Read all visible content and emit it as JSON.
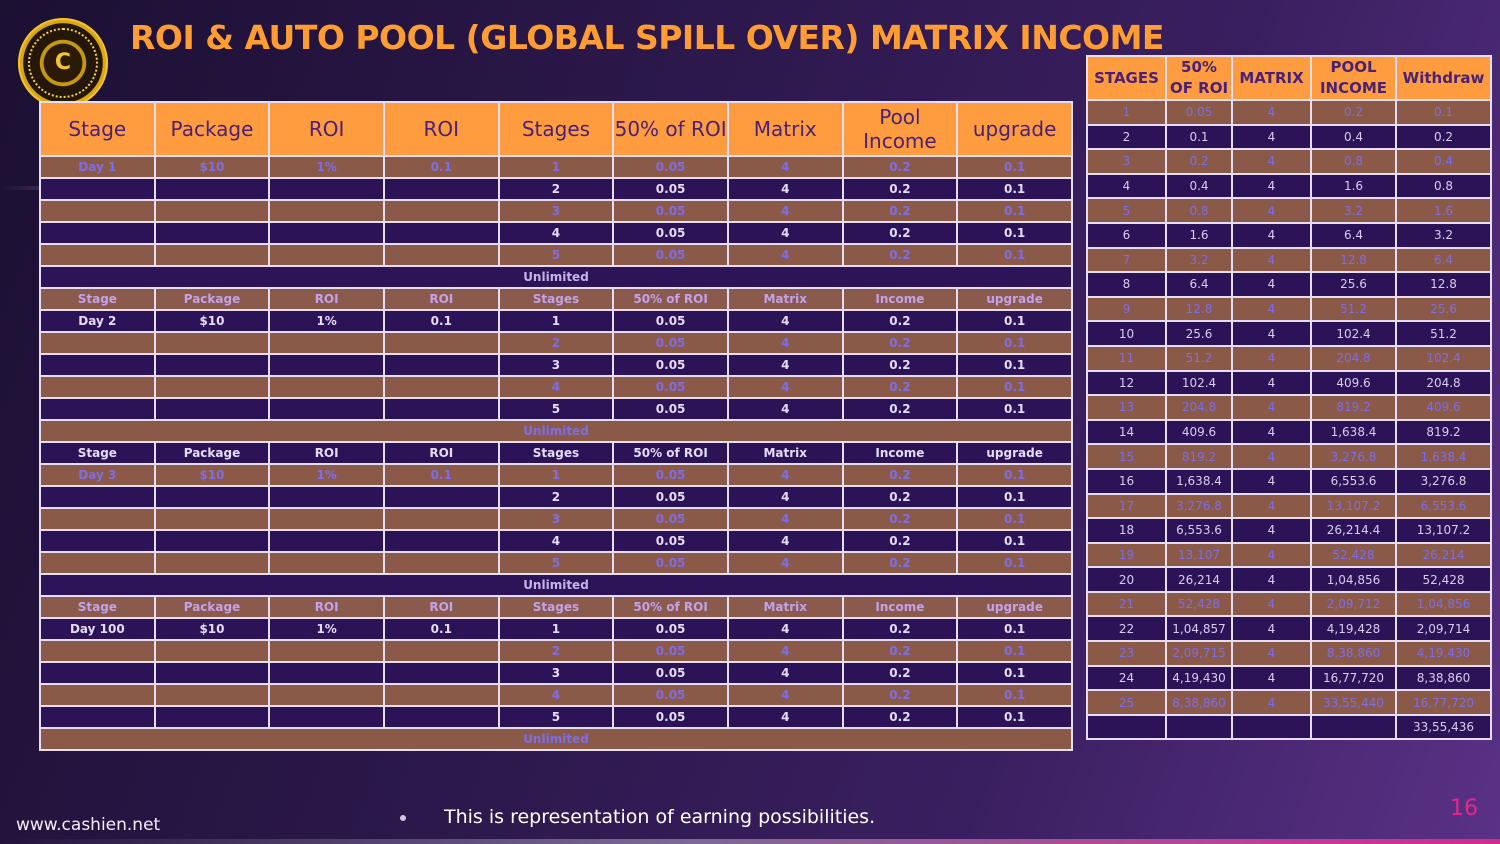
{
  "title": "ROI & AUTO POOL (GLOBAL SPILL OVER) MATRIX INCOME",
  "logo": {
    "monogram": "C",
    "ring_text": "CASHIEN DIGITAL CRYPTOCURRENCY"
  },
  "main_table": {
    "headers": [
      "Stage",
      "Package",
      "ROI",
      "ROI",
      "Stages",
      "50% of ROI",
      "Matrix",
      "Pool Income",
      "upgrade"
    ],
    "sub_headers": [
      "Stage",
      "Package",
      "ROI",
      "ROI",
      "Stages",
      "50% of ROI",
      "Matrix",
      "Income",
      "upgrade"
    ],
    "unlimited_label": "Unlimited",
    "sections": [
      {
        "day": "Day 1",
        "package": "$10",
        "roi_pct": "1%",
        "roi": "0.1",
        "rows": [
          [
            "1",
            "0.05",
            "4",
            "0.2",
            "0.1"
          ],
          [
            "2",
            "0.05",
            "4",
            "0.2",
            "0.1"
          ],
          [
            "3",
            "0.05",
            "4",
            "0.2",
            "0.1"
          ],
          [
            "4",
            "0.05",
            "4",
            "0.2",
            "0.1"
          ],
          [
            "5",
            "0.05",
            "4",
            "0.2",
            "0.1"
          ]
        ]
      },
      {
        "day": "Day 2",
        "package": "$10",
        "roi_pct": "1%",
        "roi": "0.1",
        "rows": [
          [
            "1",
            "0.05",
            "4",
            "0.2",
            "0.1"
          ],
          [
            "2",
            "0.05",
            "4",
            "0.2",
            "0.1"
          ],
          [
            "3",
            "0.05",
            "4",
            "0.2",
            "0.1"
          ],
          [
            "4",
            "0.05",
            "4",
            "0.2",
            "0.1"
          ],
          [
            "5",
            "0.05",
            "4",
            "0.2",
            "0.1"
          ]
        ]
      },
      {
        "day": "Day 3",
        "package": "$10",
        "roi_pct": "1%",
        "roi": "0.1",
        "rows": [
          [
            "1",
            "0.05",
            "4",
            "0.2",
            "0.1"
          ],
          [
            "2",
            "0.05",
            "4",
            "0.2",
            "0.1"
          ],
          [
            "3",
            "0.05",
            "4",
            "0.2",
            "0.1"
          ],
          [
            "4",
            "0.05",
            "4",
            "0.2",
            "0.1"
          ],
          [
            "5",
            "0.05",
            "4",
            "0.2",
            "0.1"
          ]
        ]
      },
      {
        "day": "Day 100",
        "package": "$10",
        "roi_pct": "1%",
        "roi": "0.1",
        "rows": [
          [
            "1",
            "0.05",
            "4",
            "0.2",
            "0.1"
          ],
          [
            "2",
            "0.05",
            "4",
            "0.2",
            "0.1"
          ],
          [
            "3",
            "0.05",
            "4",
            "0.2",
            "0.1"
          ],
          [
            "4",
            "0.05",
            "4",
            "0.2",
            "0.1"
          ],
          [
            "5",
            "0.05",
            "4",
            "0.2",
            "0.1"
          ]
        ]
      }
    ]
  },
  "side_table": {
    "headers": [
      "STAGES",
      "50% OF ROI",
      "MATRIX",
      "POOL INCOME",
      "Withdraw"
    ],
    "rows": [
      [
        "1",
        "0.05",
        "4",
        "0.2",
        "0.1"
      ],
      [
        "2",
        "0.1",
        "4",
        "0.4",
        "0.2"
      ],
      [
        "3",
        "0.2",
        "4",
        "0.8",
        "0.4"
      ],
      [
        "4",
        "0.4",
        "4",
        "1.6",
        "0.8"
      ],
      [
        "5",
        "0.8",
        "4",
        "3.2",
        "1.6"
      ],
      [
        "6",
        "1.6",
        "4",
        "6.4",
        "3.2"
      ],
      [
        "7",
        "3.2",
        "4",
        "12.8",
        "6.4"
      ],
      [
        "8",
        "6.4",
        "4",
        "25.6",
        "12.8"
      ],
      [
        "9",
        "12.8",
        "4",
        "51.2",
        "25.6"
      ],
      [
        "10",
        "25.6",
        "4",
        "102.4",
        "51.2"
      ],
      [
        "11",
        "51.2",
        "4",
        "204.8",
        "102.4"
      ],
      [
        "12",
        "102.4",
        "4",
        "409.6",
        "204.8"
      ],
      [
        "13",
        "204.8",
        "4",
        "819.2",
        "409.6"
      ],
      [
        "14",
        "409.6",
        "4",
        "1,638.4",
        "819.2"
      ],
      [
        "15",
        "819.2",
        "4",
        "3,276.8",
        "1,638.4"
      ],
      [
        "16",
        "1,638.4",
        "4",
        "6,553.6",
        "3,276.8"
      ],
      [
        "17",
        "3,276.8",
        "4",
        "13,107.2",
        "6,553.6"
      ],
      [
        "18",
        "6,553.6",
        "4",
        "26,214.4",
        "13,107.2"
      ],
      [
        "19",
        "13,107",
        "4",
        "52,428",
        "26,214"
      ],
      [
        "20",
        "26,214",
        "4",
        "1,04,856",
        "52,428"
      ],
      [
        "21",
        "52,428",
        "4",
        "2,09,712",
        "1,04,856"
      ],
      [
        "22",
        "1,04,857",
        "4",
        "4,19,428",
        "2,09,714"
      ],
      [
        "23",
        "2,09,715",
        "4",
        "8,38,860",
        "4,19,430"
      ],
      [
        "24",
        "4,19,430",
        "4",
        "16,77,720",
        "8,38,860"
      ],
      [
        "25",
        "8,38,860",
        "4",
        "33,55,440",
        "16,77,720"
      ],
      [
        "",
        "",
        "",
        "",
        "33,55,436"
      ]
    ]
  },
  "bullet_text": "This is representation of earning possibilities.",
  "footer_url": "www.cashien.net",
  "page_number": "16",
  "colors": {
    "orange": "#ff9c3f",
    "brown_row": "#8b5947",
    "purple_row": "#2c1357",
    "title": "#ff9d33",
    "page_number": "#e6278a"
  }
}
